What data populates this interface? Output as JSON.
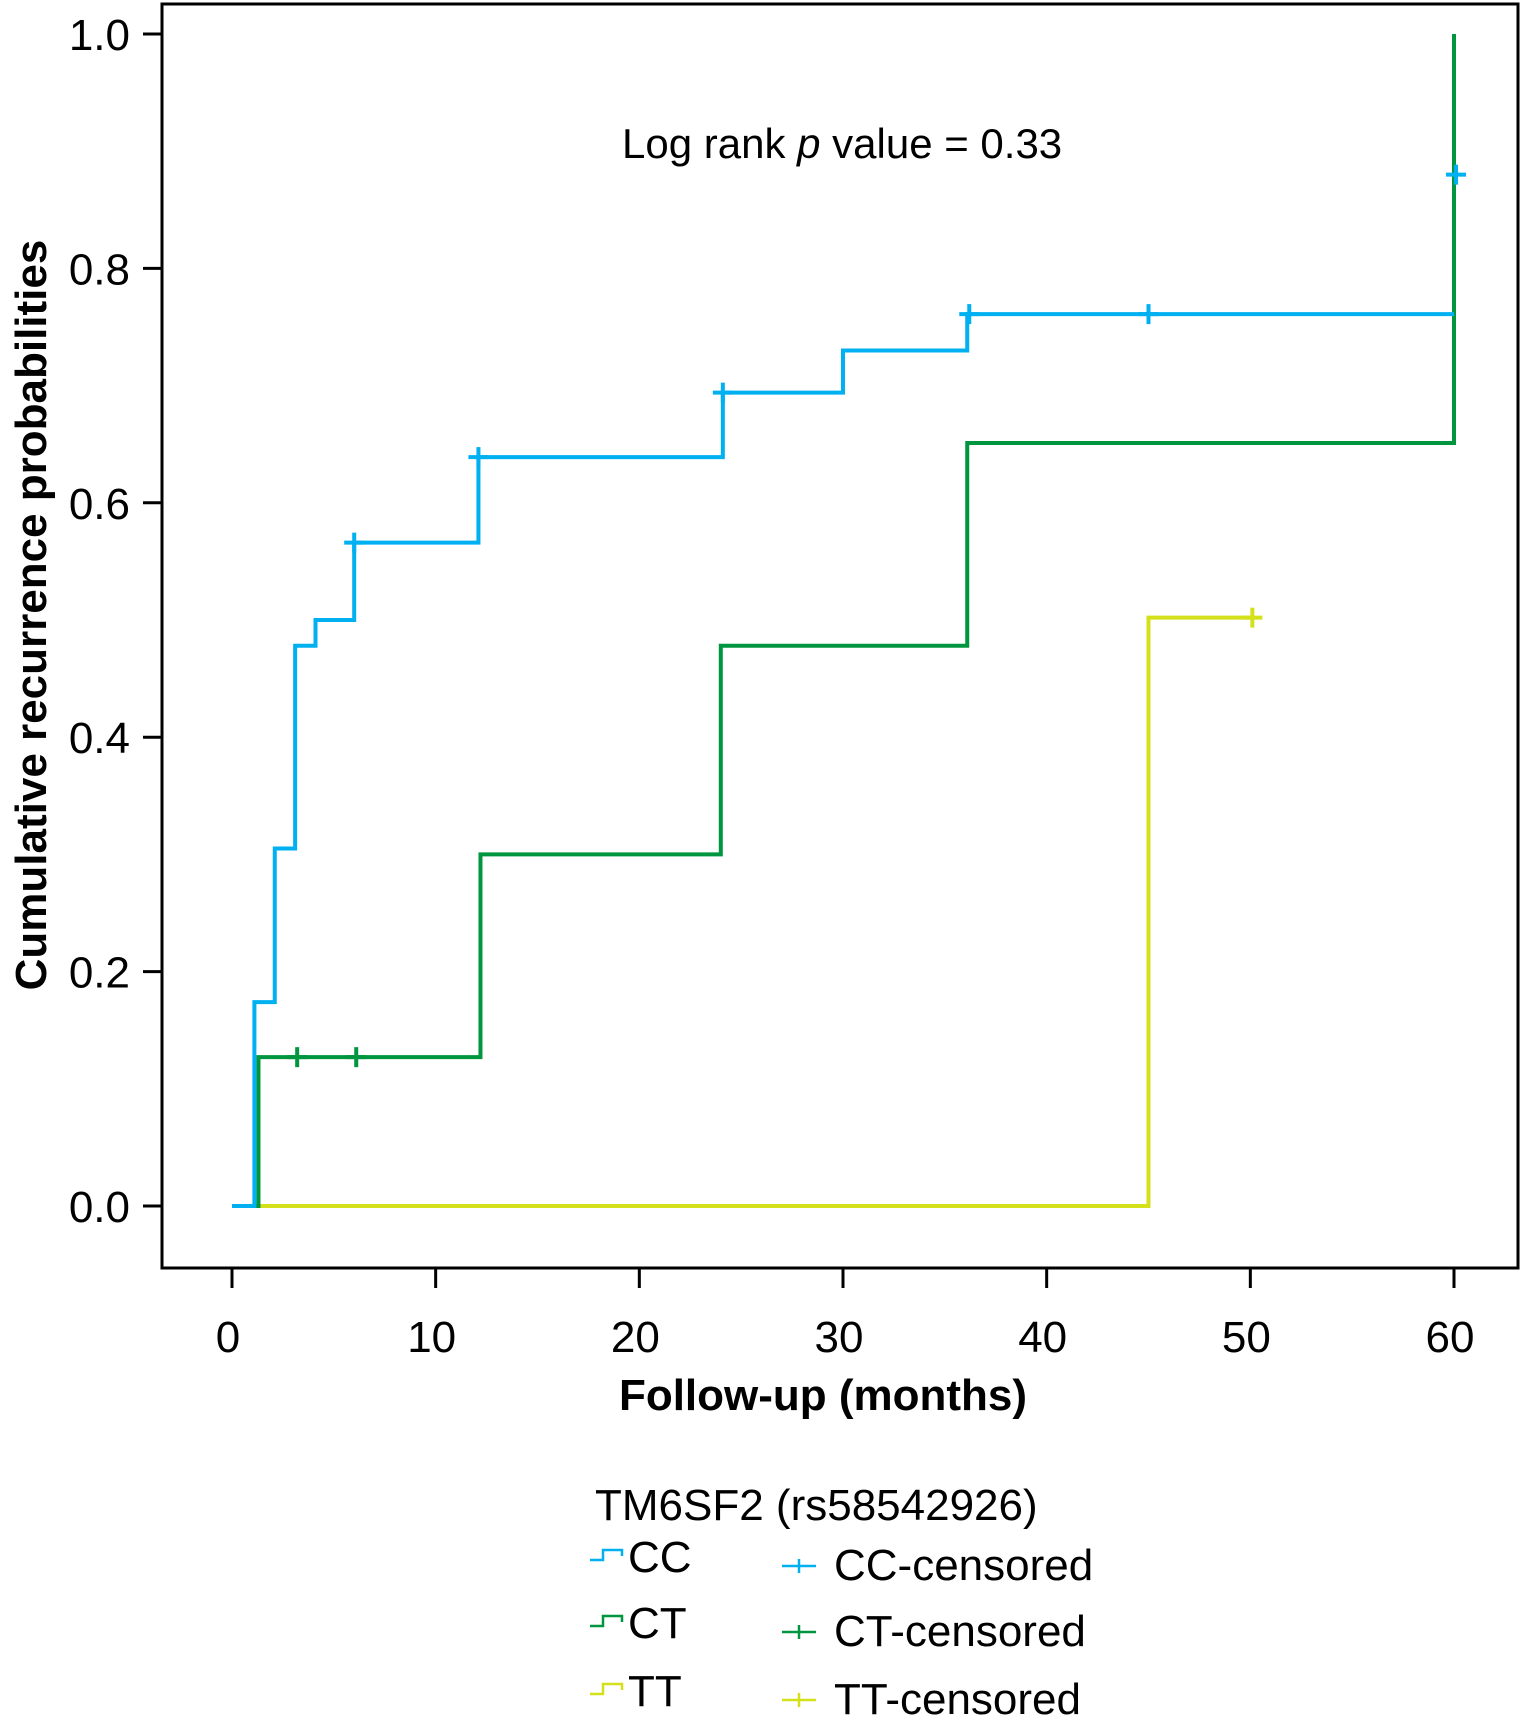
{
  "chart_data": {
    "type": "line",
    "subtype": "kaplan-meier-step",
    "title": "",
    "xlabel": "Follow-up (months)",
    "ylabel": "Cumulative recurrence probabilities",
    "xlim": [
      -3.4,
      63.5
    ],
    "ylim": [
      -0.055,
      1.0
    ],
    "xticks": [
      0,
      10,
      20,
      30,
      40,
      50,
      60
    ],
    "xtick_labels": [
      "0",
      "10",
      "20",
      "30",
      "40",
      "50",
      "60"
    ],
    "yticks": [
      0.0,
      0.2,
      0.4,
      0.6,
      0.8,
      1.0
    ],
    "ytick_labels": [
      "0.0",
      "0.2",
      "0.4",
      "0.6",
      "0.8",
      "1.0"
    ],
    "grid": false,
    "annotation": {
      "prefix": "Log rank ",
      "italic": "p",
      "suffix": " value = 0.33",
      "x": 32,
      "y": 0.905
    },
    "legend": {
      "title": "TM6SF2 (rs58542926)",
      "placement": "bottom-center",
      "lines": [
        "CC",
        "CT",
        "TT"
      ],
      "censored": [
        "CC-censored",
        "CT-censored",
        "TT-censored"
      ]
    },
    "series": [
      {
        "name": "CC",
        "color": "#00b0f0",
        "steps": [
          [
            0,
            0.0
          ],
          [
            1.1,
            0.174
          ],
          [
            2.1,
            0.305
          ],
          [
            3.1,
            0.478
          ],
          [
            4.1,
            0.5
          ],
          [
            6.0,
            0.566
          ],
          [
            12.1,
            0.639
          ],
          [
            24.1,
            0.694
          ],
          [
            30.0,
            0.73
          ],
          [
            36.1,
            0.761
          ],
          [
            60.0,
            0.761
          ]
        ],
        "censored": [
          [
            6.0,
            0.566
          ],
          [
            12.1,
            0.639
          ],
          [
            24.1,
            0.694
          ],
          [
            36.2,
            0.761
          ],
          [
            45.0,
            0.761
          ],
          [
            60.1,
            0.88
          ]
        ]
      },
      {
        "name": "CT",
        "color": "#00953f",
        "steps": [
          [
            0,
            0.0
          ],
          [
            1.3,
            0.127
          ],
          [
            12.2,
            0.3
          ],
          [
            24.0,
            0.478
          ],
          [
            36.1,
            0.651
          ],
          [
            60.0,
            1.0
          ]
        ],
        "censored": [
          [
            3.2,
            0.127
          ],
          [
            6.1,
            0.127
          ]
        ]
      },
      {
        "name": "TT",
        "color": "#d4e01a",
        "steps": [
          [
            0,
            0.0
          ],
          [
            45.0,
            0.502
          ],
          [
            50.1,
            0.502
          ]
        ],
        "censored": [
          [
            50.1,
            0.502
          ]
        ]
      }
    ]
  }
}
